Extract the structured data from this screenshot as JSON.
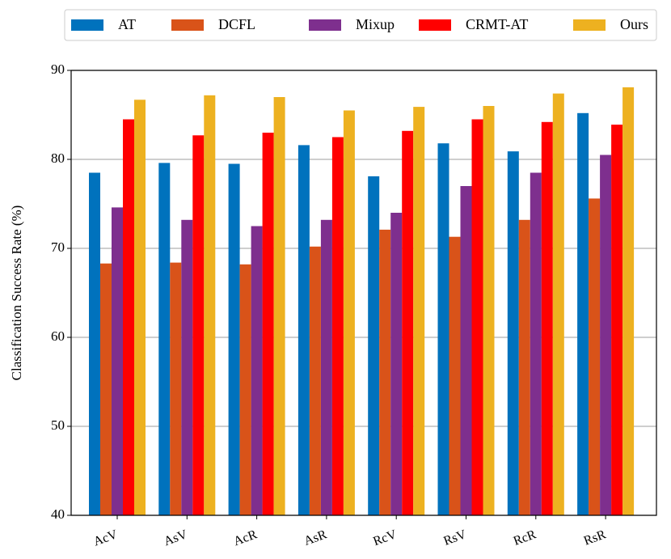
{
  "chart_data": {
    "type": "bar",
    "y_label": "Classification Success Rate (%)",
    "categories": [
      "AcV",
      "AsV",
      "AcR",
      "AsR",
      "RcV",
      "RsV",
      "RcR",
      "RsR"
    ],
    "series": [
      {
        "name": "AT",
        "color": "#0072BD",
        "values": [
          78.5,
          79.6,
          79.5,
          81.6,
          78.1,
          81.8,
          80.9,
          85.2
        ]
      },
      {
        "name": "DCFL",
        "color": "#D95319",
        "values": [
          68.3,
          68.4,
          68.2,
          70.2,
          72.1,
          71.3,
          73.2,
          75.6
        ]
      },
      {
        "name": "Mixup",
        "color": "#7E2F8E",
        "values": [
          74.6,
          73.2,
          72.5,
          73.2,
          74.0,
          77.0,
          78.5,
          80.5
        ]
      },
      {
        "name": "CRMT-AT",
        "color": "#FF0000",
        "values": [
          84.5,
          82.7,
          83.0,
          82.5,
          83.2,
          84.5,
          84.2,
          83.9
        ]
      },
      {
        "name": "Ours",
        "color": "#EDB120",
        "values": [
          86.7,
          87.2,
          87.0,
          85.5,
          85.9,
          86.0,
          87.4,
          88.1
        ]
      }
    ],
    "ylim": [
      40,
      90
    ],
    "yticks": [
      40,
      50,
      60,
      70,
      80,
      90
    ],
    "grid": true,
    "legend": "top"
  }
}
